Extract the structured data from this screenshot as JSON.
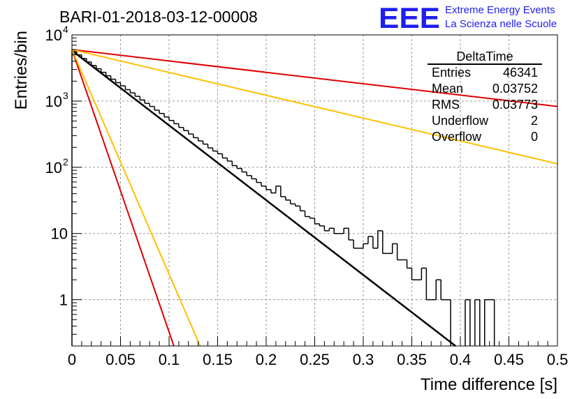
{
  "header": {
    "title": "BARI-01-2018-03-12-00008",
    "logo_text": "EEE",
    "logo_line1": "Extreme Energy Events",
    "logo_line2": "La Scienza nelle Scuole"
  },
  "stats": {
    "title": "DeltaTime",
    "rows": [
      {
        "label": "Entries",
        "value": "46341"
      },
      {
        "label": "Mean",
        "value": "0.03752"
      },
      {
        "label": "RMS",
        "value": "0.03773"
      },
      {
        "label": "Underflow",
        "value": "2"
      },
      {
        "label": "Overflow",
        "value": "0"
      }
    ]
  },
  "colors": {
    "histogram": "#000000",
    "fit": "#000000",
    "red": "#e00000",
    "yellow": "#ffc000",
    "grid": "#9a9a9a",
    "logo": "#1f1ff0"
  },
  "chart_data": {
    "type": "line",
    "title": "BARI-01-2018-03-12-00008",
    "xlabel": "Time difference [s]",
    "ylabel": "Entries/bin",
    "xlim": [
      0,
      0.5
    ],
    "ylim": [
      0.2,
      10000
    ],
    "y_scale": "log",
    "grid": true,
    "x_ticks": [
      "0",
      "0.05",
      "0.1",
      "0.15",
      "0.2",
      "0.25",
      "0.3",
      "0.35",
      "0.4",
      "0.45",
      "0.5"
    ],
    "x_tick_values": [
      0,
      0.05,
      0.1,
      0.15,
      0.2,
      0.25,
      0.3,
      0.35,
      0.4,
      0.45,
      0.5
    ],
    "y_tick_values": [
      1,
      10,
      100,
      1000,
      10000
    ],
    "y_ticks": [
      "1",
      "10",
      "10",
      "10",
      "10"
    ],
    "y_tick_exponents": [
      "",
      "",
      "2",
      "3",
      "4"
    ],
    "histogram": {
      "name": "DeltaTime",
      "bin_width": 0.005,
      "x_start": 0,
      "counts": [
        5600,
        4980,
        4400,
        3900,
        3450,
        3080,
        2720,
        2410,
        2140,
        1900,
        1700,
        1490,
        1330,
        1180,
        1040,
        925,
        830,
        730,
        650,
        575,
        510,
        455,
        400,
        358,
        318,
        280,
        250,
        224,
        196,
        176,
        160,
        138,
        124,
        106,
        96,
        85,
        75,
        67,
        59,
        52,
        46,
        41,
        52,
        36,
        32,
        28,
        26,
        22,
        18,
        17,
        14,
        13,
        11,
        12,
        10,
        10,
        12,
        8,
        6,
        6,
        7,
        9,
        6,
        11,
        5,
        5,
        7,
        4,
        4,
        3,
        2,
        2,
        3,
        1,
        1,
        2,
        1,
        1,
        0,
        0,
        0,
        1,
        0,
        1,
        0,
        1,
        1,
        0
      ]
    },
    "series": [
      {
        "color": "black",
        "points": [
          [
            0,
            5800
          ],
          [
            0.395,
            0.2
          ]
        ]
      },
      {
        "color": "red",
        "points": [
          [
            0,
            6000
          ],
          [
            0.5,
            830
          ]
        ]
      },
      {
        "color": "red",
        "points": [
          [
            0,
            6000
          ],
          [
            0.105,
            0.2
          ]
        ]
      },
      {
        "color": "yellow",
        "points": [
          [
            0,
            6000
          ],
          [
            0.5,
            113
          ]
        ]
      },
      {
        "color": "yellow",
        "points": [
          [
            0,
            6000
          ],
          [
            0.132,
            0.2
          ]
        ]
      }
    ]
  }
}
